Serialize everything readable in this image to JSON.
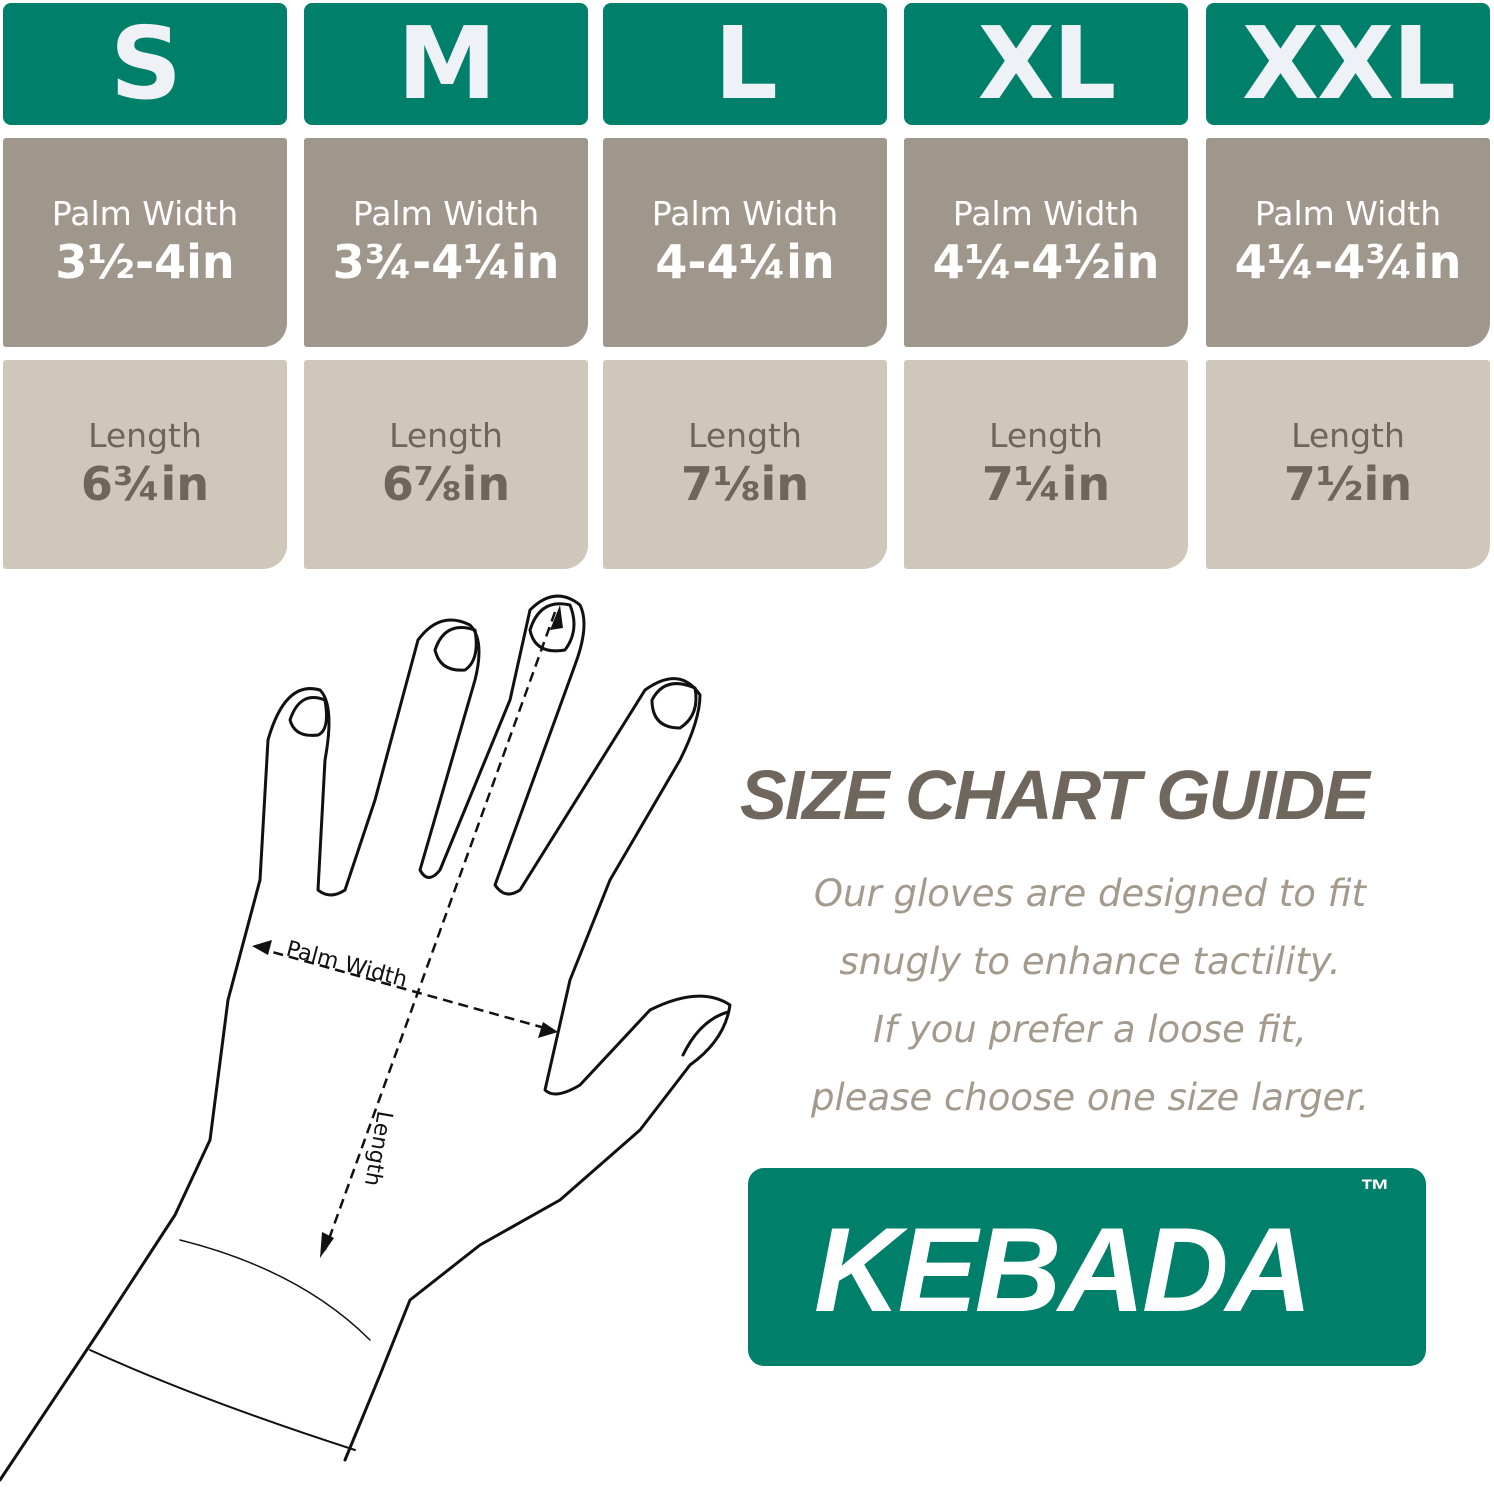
{
  "sizes": [
    {
      "size": "S",
      "palm_label": "Palm Width",
      "palm": "3½-4in",
      "length_label": "Length",
      "length": "6¾in"
    },
    {
      "size": "M",
      "palm_label": "Palm Width",
      "palm": "3¾-4¼in",
      "length_label": "Length",
      "length": "6⅞in"
    },
    {
      "size": "L",
      "palm_label": "Palm Width",
      "palm": "4-4¼in",
      "length_label": "Length",
      "length": "7⅛in"
    },
    {
      "size": "XL",
      "palm_label": "Palm Width",
      "palm": "4¼-4½in",
      "length_label": "Length",
      "length": "7¼in"
    },
    {
      "size": "XXL",
      "palm_label": "Palm Width",
      "palm": "4¼-4¾in",
      "length_label": "Length",
      "length": "7½in"
    }
  ],
  "diagram": {
    "palm_width_label": "Palm Width",
    "length_label": "Length"
  },
  "guide": {
    "title": "SIZE CHART GUIDE",
    "lines": [
      "Our gloves are designed to fit",
      "snugly to enhance tactility.",
      "If you prefer a loose fit,",
      "please choose one size larger."
    ]
  },
  "brand": {
    "name": "KEBADA",
    "trademark": "™"
  },
  "colors": {
    "green": "#007f6a",
    "palm_bg": "#a0978c",
    "length_bg": "#cfc7ba",
    "title": "#6f675e",
    "desc": "#a39a8d"
  }
}
